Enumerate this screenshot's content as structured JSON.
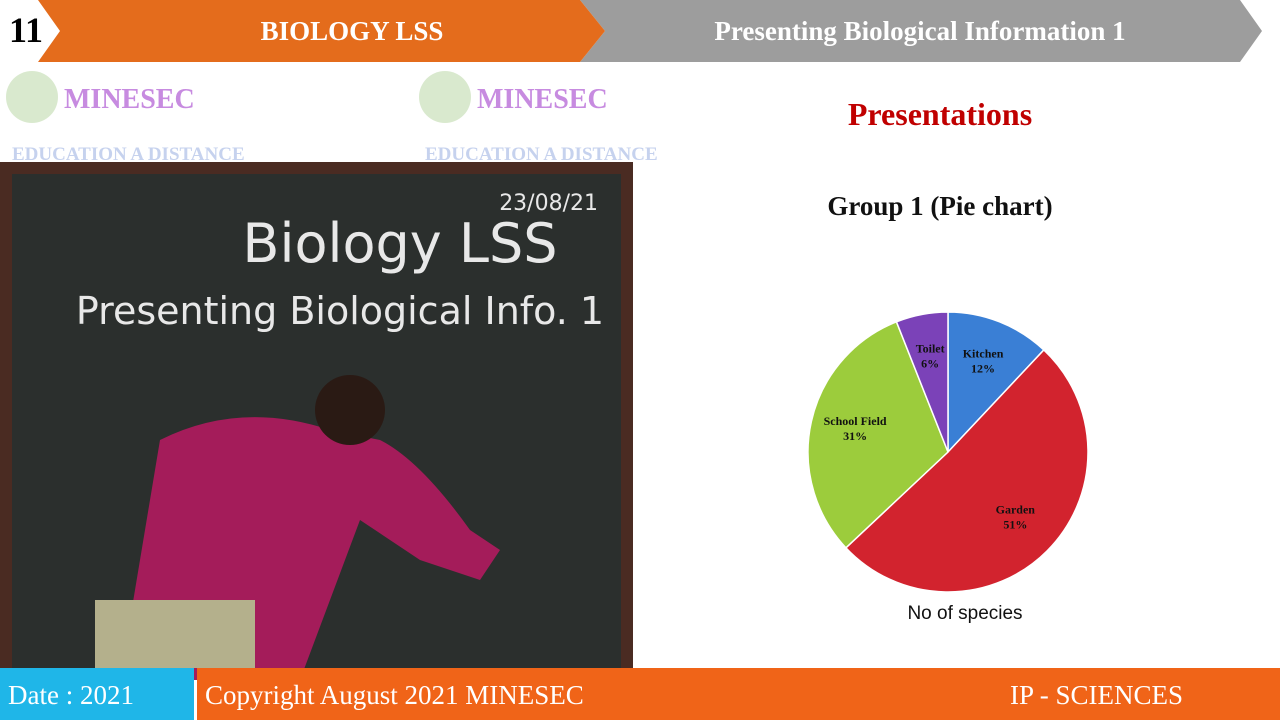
{
  "header": {
    "slide_number": "11",
    "subject": "BIOLOGY LSS",
    "lesson": "Presenting Biological Information 1"
  },
  "logos": [
    {
      "name": "MINESEC",
      "tagline": "EDUCATION A DISTANCE"
    },
    {
      "name": "MINESEC",
      "tagline": "EDUCATION A DISTANCE"
    }
  ],
  "board": {
    "date": "23/08/21",
    "title": "Biology LSS",
    "subtitle": "Presenting Biological Info. 1"
  },
  "slide": {
    "heading": "Presentations",
    "subheading": "Group 1 (Pie chart)"
  },
  "chart_data": {
    "type": "pie",
    "title": "No of species",
    "categories": [
      "Kitchen",
      "Garden",
      "School Field",
      "Toilet"
    ],
    "values": [
      12,
      51,
      31,
      6
    ],
    "value_labels": [
      "12%",
      "51%",
      "31%",
      "6%"
    ],
    "colors": [
      "#3a7fd5",
      "#d2232e",
      "#9ccc3c",
      "#7b42b8"
    ]
  },
  "footer": {
    "date": "Date : 2021",
    "copyright": "Copyright August 2021 MINESEC",
    "program": "IP - SCIENCES"
  }
}
